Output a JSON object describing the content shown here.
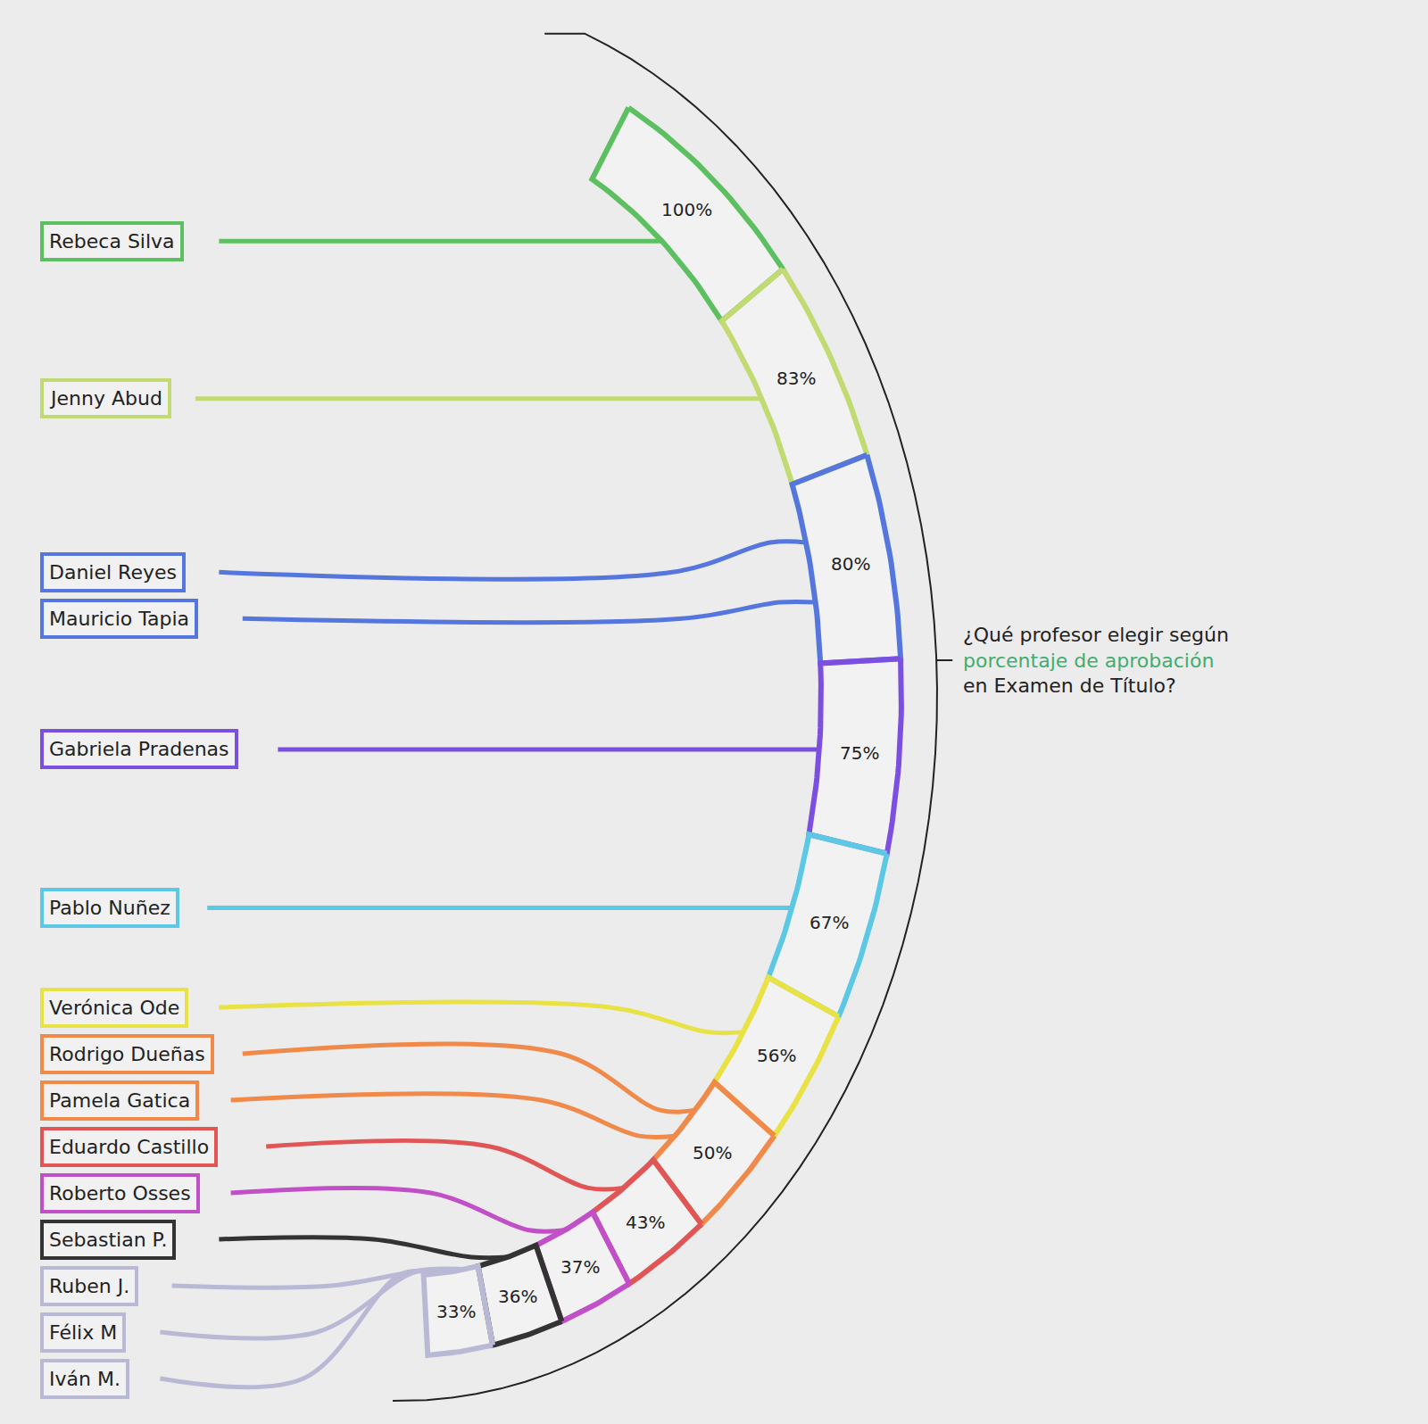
{
  "chart_data": {
    "type": "bar",
    "annotations": [
      "¿Qué profesor elegir según",
      "porcentaje de aprobación",
      "en Examen de Título?"
    ],
    "categories": [
      "Rebeca Silva",
      "Jenny Abud",
      "Daniel Reyes",
      "Mauricio Tapia",
      "Gabriela Pradenas",
      "Pablo Nuñez",
      "Verónica Ode",
      "Rodrigo Dueñas",
      "Pamela Gatica",
      "Eduardo Castillo",
      "Roberto Osses",
      "Sebastian P.",
      "Ruben J.",
      "Félix M",
      "Iván M."
    ],
    "values": [
      100,
      83,
      80,
      80,
      75,
      67,
      56,
      50,
      50,
      43,
      37,
      36,
      33,
      33,
      33
    ],
    "value_labels": [
      "100%",
      "83%",
      "80%",
      "80%",
      "75%",
      "67%",
      "56%",
      "50%",
      "50%",
      "43%",
      "37%",
      "36%",
      "33%",
      "33%",
      "33%"
    ],
    "colors": [
      "#5cbf60",
      "#c2da72",
      "#5577dd",
      "#5577dd",
      "#7b4fe0",
      "#5cc8e6",
      "#e9e244",
      "#f08a4b",
      "#f08a4b",
      "#e05555",
      "#c04fc8",
      "#333333",
      "#b9b9d6",
      "#b9b9d6",
      "#b9b9d6"
    ],
    "data_labels": true,
    "tick_labels": false,
    "grid": false
  }
}
